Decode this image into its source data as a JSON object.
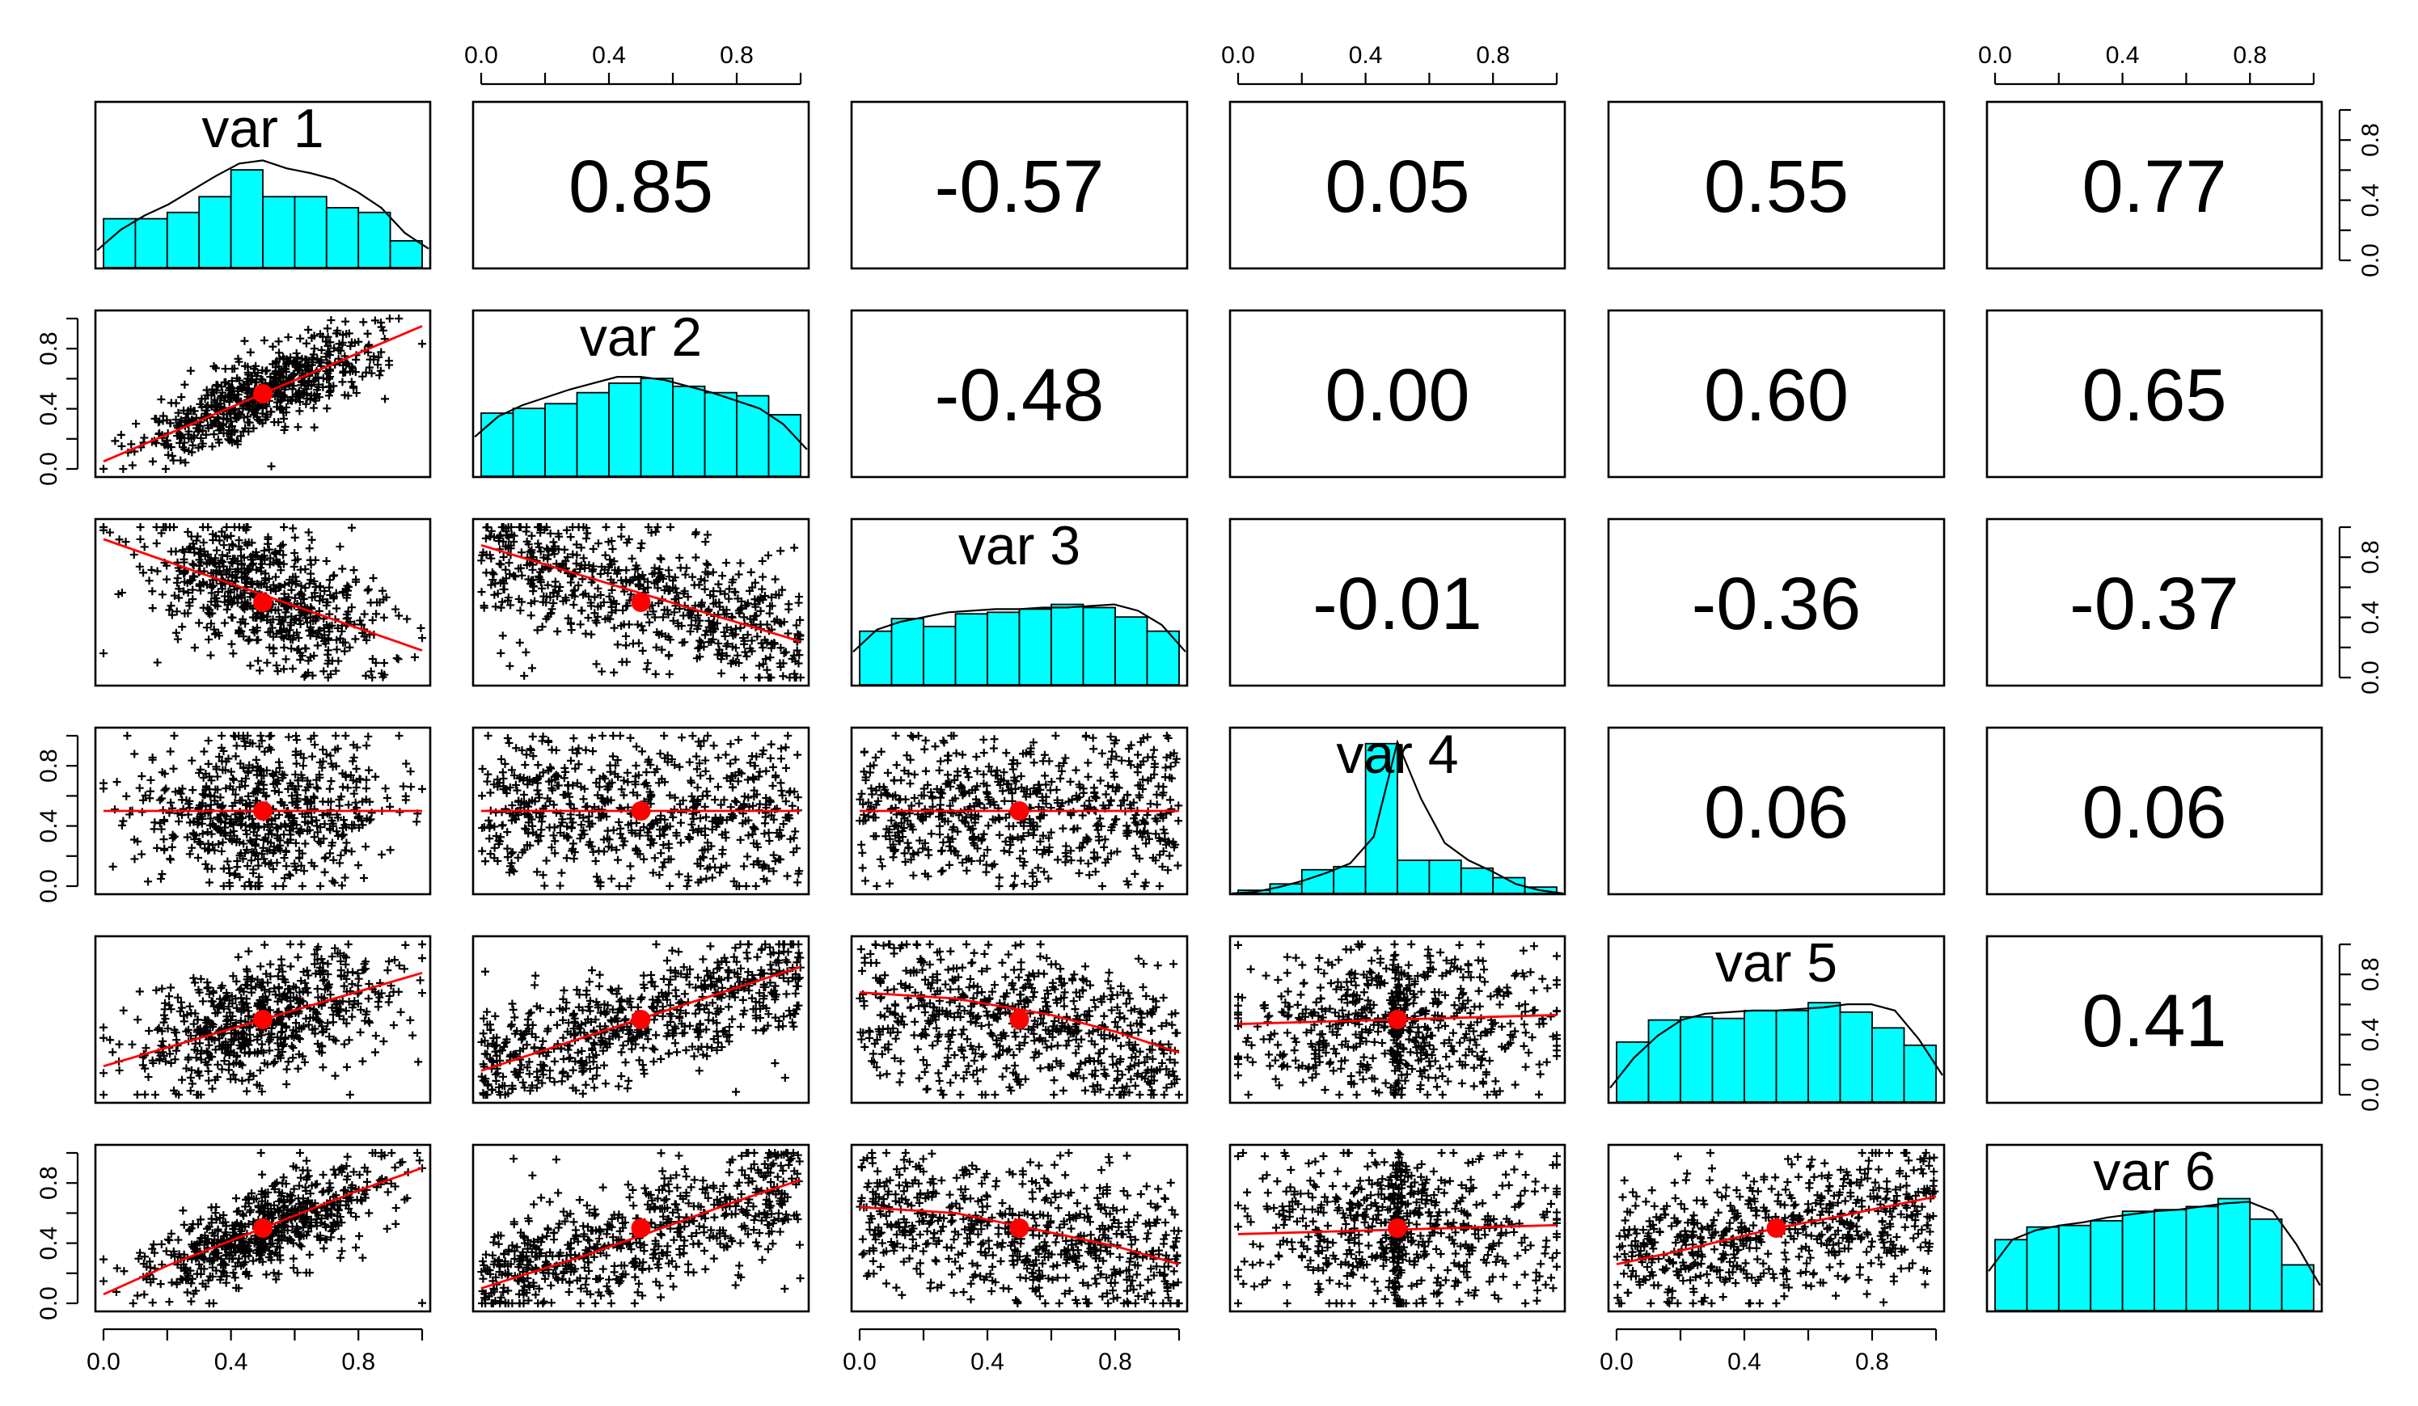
{
  "chart_data": {
    "type": "scatter-matrix",
    "variables": [
      "var 1",
      "var 2",
      "var 3",
      "var 4",
      "var 5",
      "var 6"
    ],
    "axis_range": [
      0,
      1
    ],
    "ticks": [
      "0.0",
      "0.4",
      "0.8"
    ],
    "correlations": [
      {
        "row": 1,
        "col": 2,
        "label": "0.85"
      },
      {
        "row": 1,
        "col": 3,
        "label": "-0.57"
      },
      {
        "row": 1,
        "col": 4,
        "label": "0.05"
      },
      {
        "row": 1,
        "col": 5,
        "label": "0.55"
      },
      {
        "row": 1,
        "col": 6,
        "label": "0.77"
      },
      {
        "row": 2,
        "col": 3,
        "label": "-0.48"
      },
      {
        "row": 2,
        "col": 4,
        "label": "0.00"
      },
      {
        "row": 2,
        "col": 5,
        "label": "0.60"
      },
      {
        "row": 2,
        "col": 6,
        "label": "0.65"
      },
      {
        "row": 3,
        "col": 4,
        "label": "-0.01"
      },
      {
        "row": 3,
        "col": 5,
        "label": "-0.36"
      },
      {
        "row": 3,
        "col": 6,
        "label": "-0.37"
      },
      {
        "row": 4,
        "col": 5,
        "label": "0.06"
      },
      {
        "row": 4,
        "col": 6,
        "label": "0.06"
      },
      {
        "row": 5,
        "col": 6,
        "label": "0.41"
      }
    ],
    "histograms": [
      [
        0.31,
        0.31,
        0.35,
        0.45,
        0.62,
        0.45,
        0.45,
        0.38,
        0.35,
        0.17
      ],
      [
        0.4,
        0.43,
        0.46,
        0.53,
        0.59,
        0.62,
        0.57,
        0.53,
        0.51,
        0.39
      ],
      [
        0.34,
        0.42,
        0.37,
        0.45,
        0.46,
        0.48,
        0.51,
        0.49,
        0.43,
        0.34
      ],
      [
        0.02,
        0.06,
        0.15,
        0.17,
        0.95,
        0.21,
        0.21,
        0.16,
        0.1,
        0.04
      ],
      [
        0.38,
        0.52,
        0.54,
        0.53,
        0.58,
        0.58,
        0.63,
        0.57,
        0.47,
        0.36
      ],
      [
        0.45,
        0.53,
        0.54,
        0.57,
        0.63,
        0.64,
        0.66,
        0.71,
        0.58,
        0.29
      ]
    ],
    "densities": [
      [
        0.11,
        0.24,
        0.33,
        0.4,
        0.49,
        0.58,
        0.66,
        0.68,
        0.63,
        0.6,
        0.56,
        0.48,
        0.38,
        0.22,
        0.12
      ],
      [
        0.25,
        0.38,
        0.45,
        0.5,
        0.55,
        0.59,
        0.63,
        0.63,
        0.61,
        0.57,
        0.53,
        0.48,
        0.43,
        0.33,
        0.17
      ],
      [
        0.21,
        0.35,
        0.4,
        0.43,
        0.46,
        0.47,
        0.48,
        0.48,
        0.49,
        0.49,
        0.5,
        0.51,
        0.47,
        0.38,
        0.21
      ],
      [
        0.0,
        0.01,
        0.04,
        0.08,
        0.13,
        0.19,
        0.36,
        0.96,
        0.6,
        0.32,
        0.21,
        0.14,
        0.06,
        0.02,
        0.0
      ],
      [
        0.09,
        0.28,
        0.42,
        0.52,
        0.56,
        0.57,
        0.58,
        0.58,
        0.59,
        0.6,
        0.62,
        0.62,
        0.58,
        0.4,
        0.17
      ],
      [
        0.25,
        0.45,
        0.51,
        0.54,
        0.56,
        0.59,
        0.61,
        0.63,
        0.64,
        0.66,
        0.68,
        0.69,
        0.63,
        0.42,
        0.16
      ]
    ],
    "smooth_lines": [
      {
        "row": 2,
        "col": 1,
        "x": [
          0,
          1
        ],
        "y": [
          0.05,
          0.95
        ]
      },
      {
        "row": 3,
        "col": 1,
        "x": [
          0,
          1
        ],
        "y": [
          0.92,
          0.18
        ]
      },
      {
        "row": 3,
        "col": 2,
        "x": [
          0,
          1
        ],
        "y": [
          0.88,
          0.24
        ]
      },
      {
        "row": 4,
        "col": 1,
        "x": [
          0,
          1
        ],
        "y": [
          0.5,
          0.5
        ]
      },
      {
        "row": 4,
        "col": 2,
        "x": [
          0,
          1
        ],
        "y": [
          0.5,
          0.5
        ]
      },
      {
        "row": 4,
        "col": 3,
        "x": [
          0,
          1
        ],
        "y": [
          0.5,
          0.5
        ]
      },
      {
        "row": 5,
        "col": 1,
        "x": [
          0,
          1
        ],
        "y": [
          0.19,
          0.81
        ]
      },
      {
        "row": 5,
        "col": 2,
        "x": [
          0,
          1
        ],
        "y": [
          0.16,
          0.85
        ]
      },
      {
        "row": 5,
        "col": 3,
        "x": [
          0,
          0.3,
          0.6,
          0.8,
          1.0
        ],
        "y": [
          0.68,
          0.64,
          0.53,
          0.42,
          0.28
        ]
      },
      {
        "row": 5,
        "col": 4,
        "x": [
          0,
          0.5,
          1.0
        ],
        "y": [
          0.47,
          0.5,
          0.53
        ]
      },
      {
        "row": 6,
        "col": 1,
        "x": [
          0,
          0.2,
          0.5,
          0.8,
          1.0
        ],
        "y": [
          0.06,
          0.25,
          0.5,
          0.75,
          0.9
        ]
      },
      {
        "row": 6,
        "col": 2,
        "x": [
          0,
          0.3,
          0.5,
          0.8,
          1.0
        ],
        "y": [
          0.1,
          0.3,
          0.45,
          0.68,
          0.82
        ]
      },
      {
        "row": 6,
        "col": 3,
        "x": [
          0,
          0.3,
          0.6,
          0.8,
          1.0
        ],
        "y": [
          0.64,
          0.6,
          0.47,
          0.38,
          0.26
        ]
      },
      {
        "row": 6,
        "col": 4,
        "x": [
          0,
          0.5,
          1.0
        ],
        "y": [
          0.46,
          0.49,
          0.52
        ]
      },
      {
        "row": 6,
        "col": 5,
        "x": [
          0,
          0.2,
          0.4,
          0.5,
          0.7,
          1.0
        ],
        "y": [
          0.26,
          0.35,
          0.45,
          0.5,
          0.58,
          0.71
        ]
      }
    ],
    "scatter_params": [
      {
        "row": 2,
        "col": 1,
        "n": 650,
        "intercept": 0.05,
        "slope": 0.9,
        "sd": 0.13,
        "xdist": "bell"
      },
      {
        "row": 3,
        "col": 1,
        "n": 650,
        "intercept": 0.92,
        "slope": -0.74,
        "sd": 0.22,
        "xdist": "bell"
      },
      {
        "row": 3,
        "col": 2,
        "n": 650,
        "intercept": 0.88,
        "slope": -0.64,
        "sd": 0.22,
        "xdist": "uniform"
      },
      {
        "row": 4,
        "col": 1,
        "n": 650,
        "intercept": 0.5,
        "slope": 0.0,
        "sd": 0.26,
        "xdist": "bell"
      },
      {
        "row": 4,
        "col": 2,
        "n": 650,
        "intercept": 0.5,
        "slope": 0.0,
        "sd": 0.26,
        "xdist": "uniform"
      },
      {
        "row": 4,
        "col": 3,
        "n": 650,
        "intercept": 0.5,
        "slope": 0.0,
        "sd": 0.26,
        "xdist": "uniform"
      },
      {
        "row": 5,
        "col": 1,
        "n": 650,
        "intercept": 0.19,
        "slope": 0.62,
        "sd": 0.2,
        "xdist": "bell"
      },
      {
        "row": 5,
        "col": 2,
        "n": 650,
        "intercept": 0.16,
        "slope": 0.69,
        "sd": 0.19,
        "xdist": "uniform"
      },
      {
        "row": 5,
        "col": 3,
        "n": 650,
        "intercept": 0.68,
        "slope": -0.4,
        "sd": 0.25,
        "xdist": "uniform"
      },
      {
        "row": 5,
        "col": 4,
        "n": 650,
        "intercept": 0.47,
        "slope": 0.06,
        "sd": 0.27,
        "xdist": "center"
      },
      {
        "row": 6,
        "col": 1,
        "n": 650,
        "intercept": 0.06,
        "slope": 0.84,
        "sd": 0.15,
        "xdist": "bell"
      },
      {
        "row": 6,
        "col": 2,
        "n": 650,
        "intercept": 0.1,
        "slope": 0.72,
        "sd": 0.19,
        "xdist": "uniform"
      },
      {
        "row": 6,
        "col": 3,
        "n": 650,
        "intercept": 0.64,
        "slope": -0.38,
        "sd": 0.25,
        "xdist": "uniform"
      },
      {
        "row": 6,
        "col": 4,
        "n": 650,
        "intercept": 0.46,
        "slope": 0.06,
        "sd": 0.27,
        "xdist": "center"
      },
      {
        "row": 6,
        "col": 5,
        "n": 650,
        "intercept": 0.26,
        "slope": 0.45,
        "sd": 0.23,
        "xdist": "uniform"
      }
    ],
    "mean_point": {
      "x": 0.5,
      "y": 0.5
    },
    "colors": {
      "histogram_fill": "#00ffff",
      "smooth_line": "#ff0000",
      "mean_point": "#ff0000",
      "points": "#000000",
      "text": "#000000"
    },
    "grid": false
  }
}
